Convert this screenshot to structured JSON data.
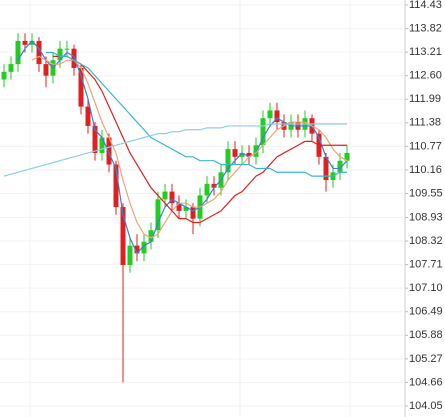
{
  "chart_data": {
    "type": "candlestick",
    "open": [
      112.5,
      112.7,
      112.9,
      113.5,
      113.4,
      113.5,
      112.9,
      112.6,
      113.0,
      113.3,
      113.3,
      112.8,
      111.8,
      111.3,
      110.6,
      111.0,
      110.3,
      109.2,
      107.7,
      108.2,
      108.0,
      108.3,
      108.6,
      109.4,
      109.6,
      109.3,
      109.1,
      109.2,
      108.9,
      109.5,
      109.8,
      109.7,
      110.1,
      110.7,
      110.5,
      110.6,
      110.5,
      110.8,
      111.5,
      111.7,
      111.4,
      111.2,
      111.4,
      111.2,
      111.5,
      111.1,
      110.5,
      109.9,
      110.1,
      110.4
    ],
    "high": [
      112.9,
      113.1,
      113.7,
      113.7,
      113.7,
      113.6,
      113.1,
      113.2,
      113.5,
      113.5,
      113.4,
      112.9,
      112.0,
      111.4,
      111.2,
      111.1,
      110.4,
      109.3,
      108.4,
      108.5,
      108.5,
      108.8,
      109.6,
      109.8,
      109.8,
      109.5,
      109.4,
      109.3,
      109.7,
      110.0,
      110.0,
      110.3,
      110.9,
      110.9,
      110.8,
      110.8,
      111.0,
      111.7,
      111.9,
      111.9,
      111.6,
      111.6,
      111.6,
      111.7,
      111.6,
      111.2,
      110.6,
      110.3,
      110.6,
      110.8
    ],
    "low": [
      112.3,
      112.5,
      112.7,
      113.2,
      113.2,
      112.7,
      112.3,
      112.4,
      112.8,
      113.1,
      112.6,
      111.6,
      111.1,
      110.4,
      110.4,
      110.1,
      109.0,
      104.66,
      107.5,
      107.8,
      107.8,
      108.1,
      108.4,
      109.2,
      109.1,
      108.9,
      108.9,
      108.5,
      108.7,
      109.3,
      109.5,
      109.5,
      109.9,
      110.3,
      110.3,
      110.3,
      110.3,
      110.6,
      111.3,
      111.2,
      111.0,
      111.0,
      111.0,
      111.0,
      110.9,
      110.3,
      109.6,
      109.7,
      109.9,
      110.2
    ],
    "close": [
      112.7,
      112.9,
      113.5,
      113.4,
      113.5,
      112.9,
      112.6,
      113.0,
      113.3,
      113.3,
      112.8,
      111.8,
      111.3,
      110.6,
      111.0,
      110.3,
      109.2,
      107.7,
      108.2,
      108.0,
      108.3,
      108.6,
      109.4,
      109.6,
      109.3,
      109.1,
      109.2,
      108.9,
      109.5,
      109.8,
      109.7,
      110.1,
      110.7,
      110.5,
      110.6,
      110.5,
      110.8,
      111.5,
      111.7,
      111.4,
      111.2,
      111.4,
      111.2,
      111.5,
      111.1,
      110.5,
      109.9,
      110.1,
      110.4,
      110.6
    ],
    "up_color": "#22cc22",
    "down_color": "#e02020",
    "moving_averages": [
      {
        "color": "#3a7fd9",
        "values": [
          null,
          null,
          113.0,
          113.3,
          113.5,
          113.3,
          113.0,
          112.8,
          113.0,
          113.2,
          113.1,
          112.6,
          112.0,
          111.2,
          111.0,
          110.6,
          110.2,
          109.0,
          108.4,
          108.0,
          108.2,
          108.3,
          108.8,
          109.2,
          109.4,
          109.3,
          109.2,
          109.1,
          109.2,
          109.4,
          109.7,
          109.9,
          110.2,
          110.4,
          110.6,
          110.5,
          110.6,
          111.0,
          111.3,
          111.5,
          111.4,
          111.3,
          111.3,
          111.3,
          111.3,
          111.0,
          110.5,
          110.2,
          110.2,
          110.4
        ]
      },
      {
        "color": "#e8a67a",
        "values": [
          null,
          null,
          null,
          null,
          113.0,
          113.1,
          113.0,
          112.9,
          112.9,
          113.0,
          113.0,
          112.8,
          112.4,
          111.9,
          111.4,
          111.0,
          110.6,
          109.9,
          109.3,
          108.8,
          108.5,
          108.4,
          108.5,
          108.8,
          109.1,
          109.3,
          109.3,
          109.2,
          109.2,
          109.3,
          109.4,
          109.6,
          109.9,
          110.1,
          110.3,
          110.5,
          110.6,
          110.8,
          111.0,
          111.2,
          111.3,
          111.4,
          111.4,
          111.4,
          111.3,
          111.2,
          111.0,
          110.7,
          110.5,
          110.4
        ]
      },
      {
        "color": "#e02020",
        "values": [
          null,
          null,
          null,
          null,
          null,
          null,
          null,
          113.1,
          113.1,
          113.1,
          113.0,
          112.9,
          112.7,
          112.5,
          112.2,
          111.8,
          111.4,
          111.0,
          110.6,
          110.3,
          110.0,
          109.7,
          109.5,
          109.3,
          109.1,
          108.9,
          108.9,
          108.8,
          108.8,
          108.9,
          109.0,
          109.1,
          109.3,
          109.5,
          109.6,
          109.8,
          110.0,
          110.1,
          110.3,
          110.5,
          110.6,
          110.7,
          110.8,
          110.9,
          110.9,
          110.8,
          110.8,
          110.8,
          110.8,
          110.8
        ]
      },
      {
        "color": "#3bb8c8",
        "values": [
          null,
          null,
          null,
          null,
          null,
          null,
          113.2,
          113.2,
          113.1,
          113.1,
          113.0,
          112.9,
          112.8,
          112.6,
          112.4,
          112.2,
          112.0,
          111.8,
          111.6,
          111.4,
          111.2,
          111.0,
          110.9,
          110.8,
          110.7,
          110.6,
          110.5,
          110.5,
          110.4,
          110.4,
          110.4,
          110.3,
          110.3,
          110.3,
          110.3,
          110.3,
          110.2,
          110.2,
          110.2,
          110.1,
          110.1,
          110.1,
          110.1,
          110.1,
          110.0,
          110.0,
          110.0,
          110.0,
          110.1,
          110.1
        ]
      },
      {
        "color": "#8ccfe6",
        "values": [
          110.0,
          110.05,
          110.1,
          110.15,
          110.2,
          110.25,
          110.3,
          110.35,
          110.4,
          110.45,
          110.5,
          110.55,
          110.6,
          110.65,
          110.7,
          110.75,
          110.8,
          110.85,
          110.9,
          110.95,
          111.0,
          111.05,
          111.1,
          111.1,
          111.15,
          111.15,
          111.2,
          111.2,
          111.2,
          111.25,
          111.25,
          111.25,
          111.3,
          111.3,
          111.3,
          111.3,
          111.3,
          111.3,
          111.35,
          111.35,
          111.35,
          111.35,
          111.35,
          111.35,
          111.35,
          111.35,
          111.35,
          111.35,
          111.35,
          111.35
        ]
      }
    ],
    "ylim": [
      104.05,
      114.43
    ],
    "yticks": [
      114.43,
      113.82,
      113.21,
      {
        "value": 112.6,
        "label": "112.60"
      },
      111.99,
      111.38,
      110.77,
      110.16,
      109.55,
      108.93,
      108.32,
      107.71,
      {
        "value": 107.1,
        "label": "107.10"
      },
      106.49,
      105.88,
      105.27,
      104.66,
      104.05
    ],
    "grid": true
  }
}
